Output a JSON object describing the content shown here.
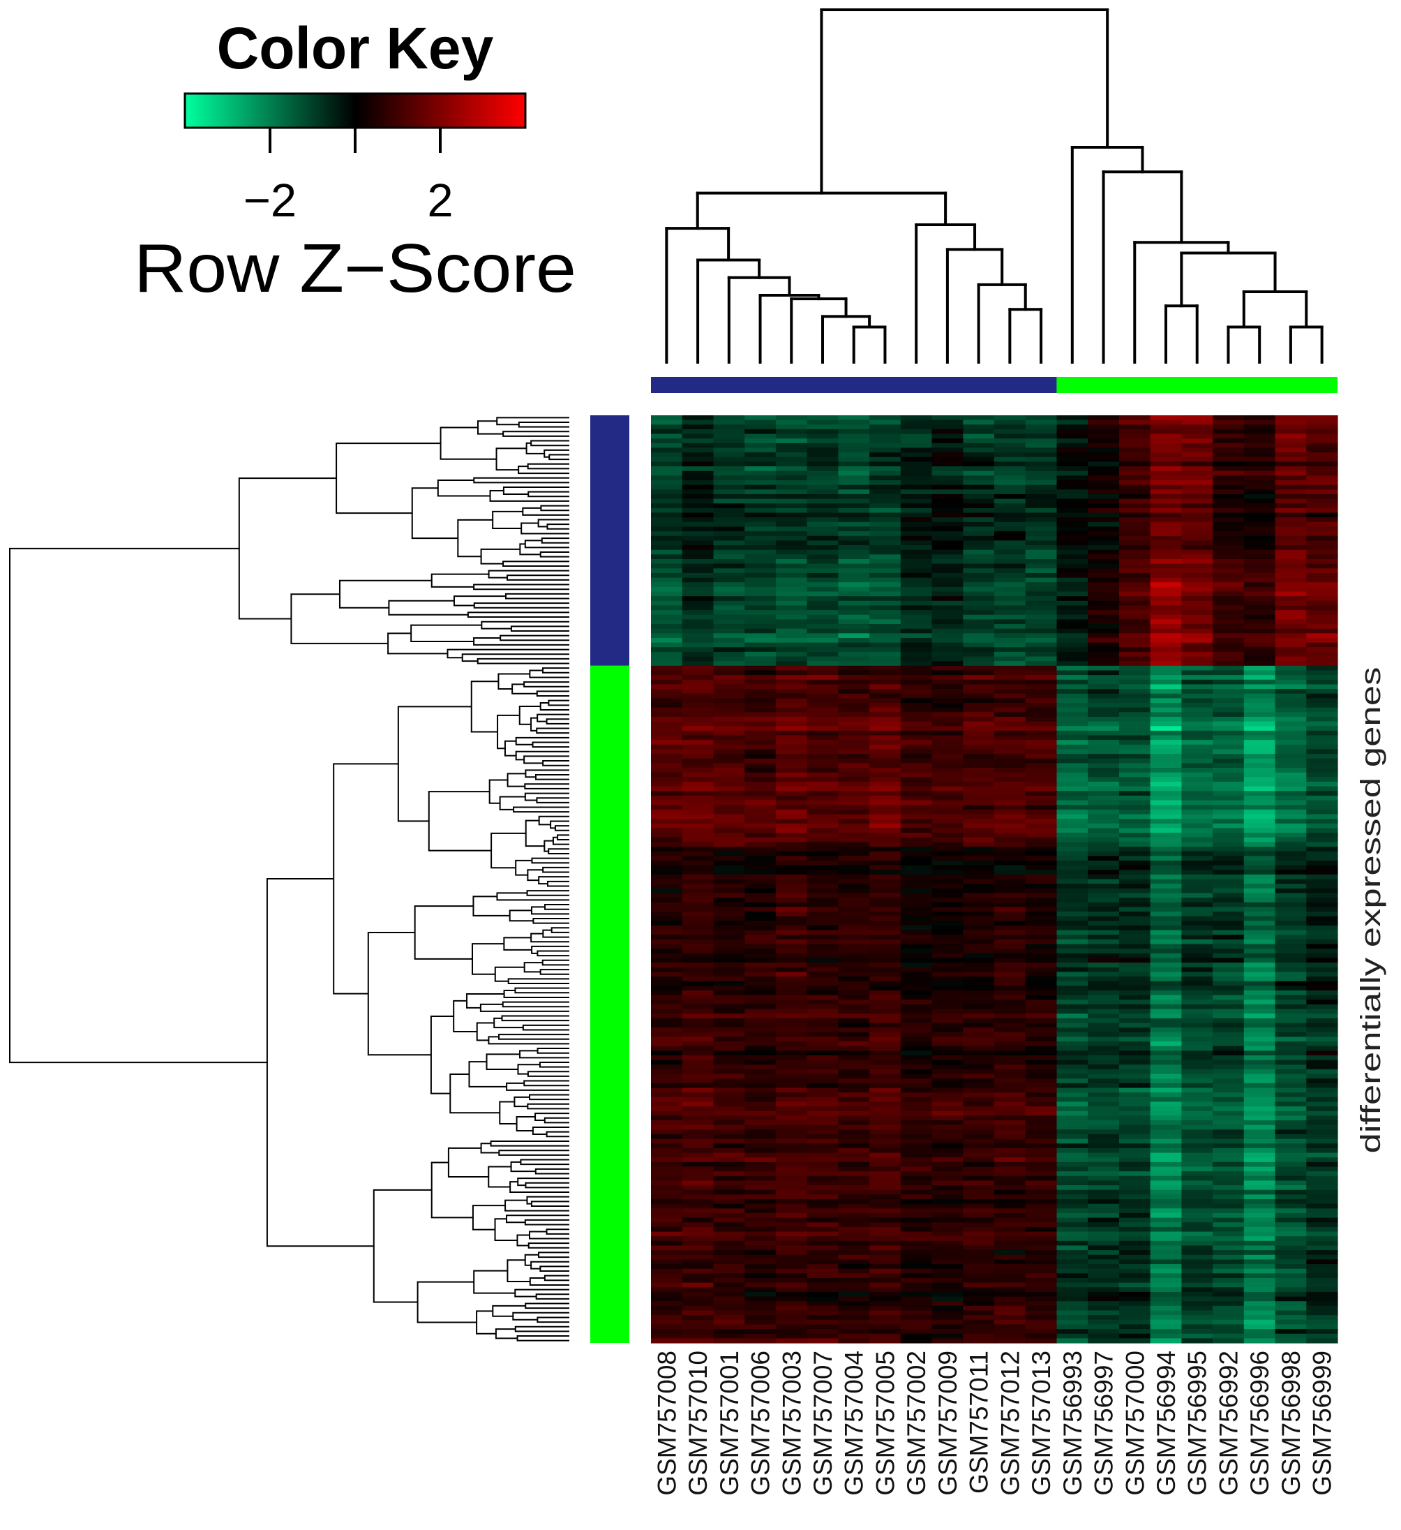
{
  "color_key": {
    "title": "Color Key",
    "axis_label": "Row Z−Score",
    "ticks": [
      {
        "value": -2,
        "label": "−2"
      },
      {
        "value": 0,
        "label": ""
      },
      {
        "value": 2,
        "label": "2"
      }
    ]
  },
  "chart_data": {
    "type": "heatmap",
    "title": "",
    "ylabel": "differentially expressed genes",
    "value_range": [
      -4,
      4
    ],
    "color_scale": {
      "low": "#00FF9F",
      "mid": "#000000",
      "high": "#FF0000"
    },
    "columns": [
      "GSM757008",
      "GSM757010",
      "GSM757001",
      "GSM757006",
      "GSM757003",
      "GSM757007",
      "GSM757004",
      "GSM757005",
      "GSM757002",
      "GSM757009",
      "GSM757011",
      "GSM757012",
      "GSM757013",
      "GSM756993",
      "GSM756997",
      "GSM757000",
      "GSM756994",
      "GSM756995",
      "GSM756992",
      "GSM756996",
      "GSM756998",
      "GSM756999"
    ],
    "column_groups": [
      {
        "color": "#232A85",
        "columns": 13
      },
      {
        "color": "#00FF00",
        "columns": 9
      }
    ],
    "row_groups": [
      {
        "color": "#232A85",
        "fraction": 0.27,
        "mean_z_by_column": [
          -1.1,
          -0.6,
          -1.0,
          -1.0,
          -1.1,
          -1.0,
          -1.2,
          -1.1,
          -0.6,
          -0.4,
          -0.9,
          -0.9,
          -1.0,
          -0.3,
          0.3,
          1.0,
          2.0,
          1.7,
          0.8,
          0.6,
          1.6,
          1.4
        ]
      },
      {
        "color": "#00FF00",
        "fraction": 0.73,
        "mean_z_by_column": [
          1.0,
          1.1,
          0.9,
          0.8,
          1.1,
          1.0,
          0.9,
          1.1,
          0.6,
          0.7,
          0.8,
          0.9,
          0.8,
          -1.2,
          -1.0,
          -1.0,
          -2.0,
          -1.2,
          -1.2,
          -2.1,
          -1.3,
          -0.8
        ]
      }
    ],
    "column_dendrogram": {
      "h": 1.0,
      "c": [
        {
          "h": 0.48,
          "c": [
            {
              "h": 0.38,
              "c": [
                0,
                {
                  "h": 0.29,
                  "c": [
                    1,
                    {
                      "h": 0.24,
                      "c": [
                        2,
                        {
                          "h": 0.19,
                          "c": [
                            3,
                            {
                              "h": 0.18,
                              "c": [
                                4,
                                {
                                  "h": 0.13,
                                  "c": [
                                    5,
                                    {
                                      "h": 0.1,
                                      "c": [
                                        6,
                                        7
                                      ]
                                    }
                                  ]
                                }
                              ]
                            }
                          ]
                        }
                      ]
                    }
                  ]
                }
              ]
            },
            {
              "h": 0.39,
              "c": [
                8,
                {
                  "h": 0.32,
                  "c": [
                    9,
                    {
                      "h": 0.22,
                      "c": [
                        10,
                        {
                          "h": 0.15,
                          "c": [
                            11,
                            12
                          ]
                        }
                      ]
                    }
                  ]
                }
              ]
            }
          ]
        },
        {
          "h": 0.61,
          "c": [
            13,
            {
              "h": 0.54,
              "c": [
                14,
                {
                  "h": 0.34,
                  "c": [
                    15,
                    {
                      "h": 0.31,
                      "c": [
                        {
                          "h": 0.16,
                          "c": [
                            16,
                            17
                          ]
                        },
                        {
                          "h": 0.2,
                          "c": [
                            {
                              "h": 0.1,
                              "c": [
                                18,
                                19
                              ]
                            },
                            {
                              "h": 0.1,
                              "c": [
                                20,
                                21
                              ]
                            }
                          ]
                        }
                      ]
                    }
                  ]
                }
              ]
            }
          ]
        }
      ]
    },
    "row_dendrogram": {
      "root_height": 1.0,
      "group_heights": [
        0.59,
        0.54
      ]
    }
  }
}
